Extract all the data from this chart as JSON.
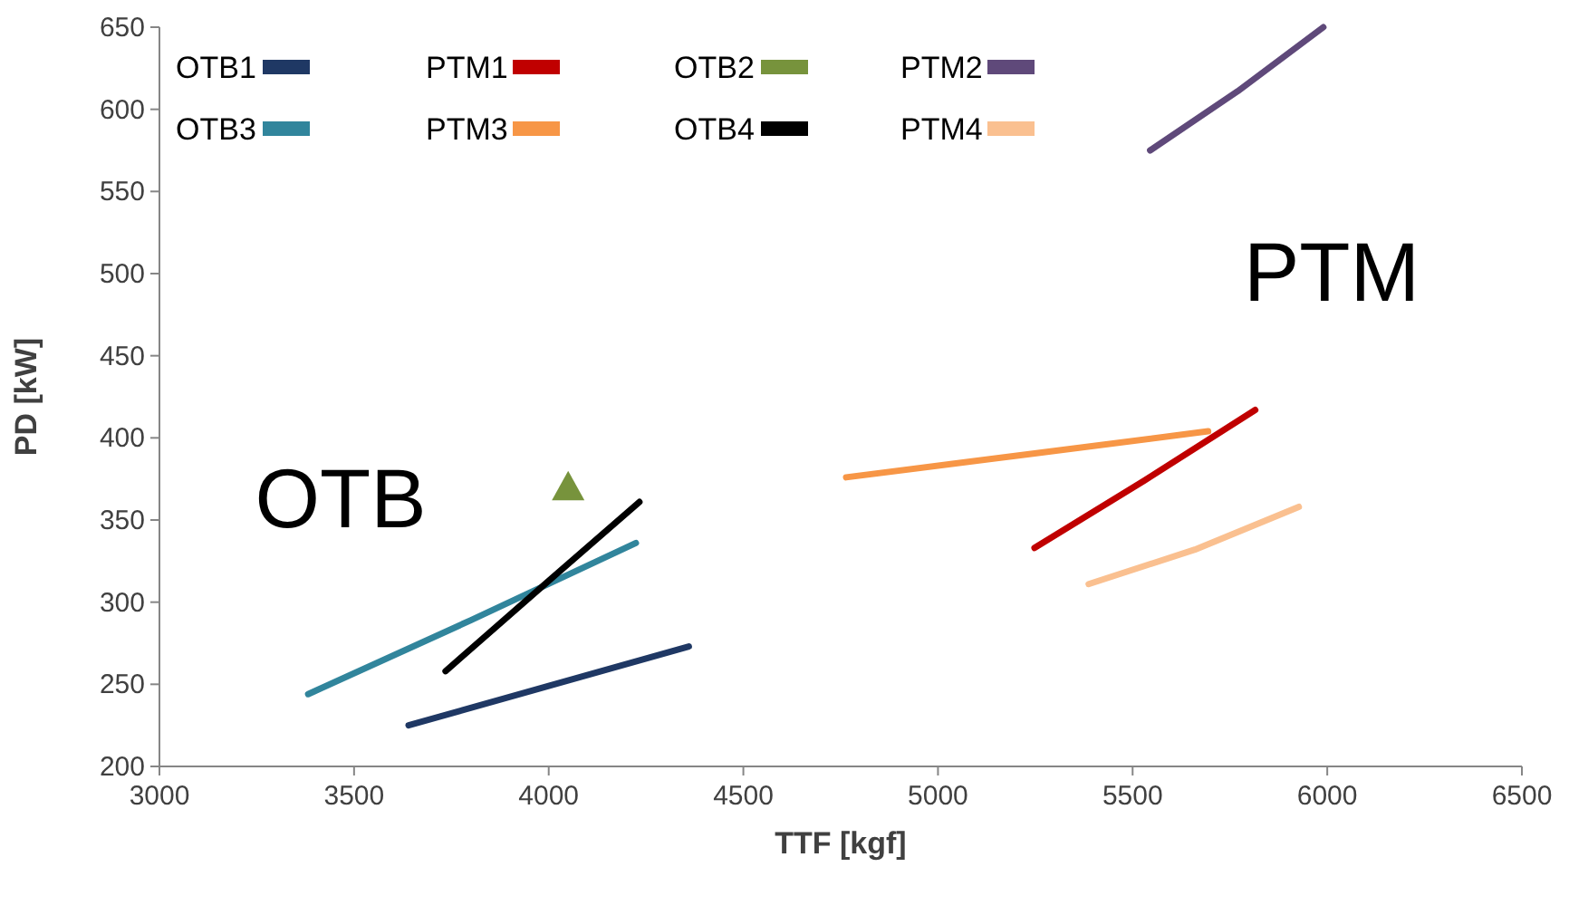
{
  "chart_data": {
    "type": "line",
    "xlabel": "TTF [kgf]",
    "ylabel": "PD [kW]",
    "xlim": [
      3000,
      6500
    ],
    "xticks": [
      3000,
      3500,
      4000,
      4500,
      5000,
      5500,
      6000,
      6500
    ],
    "ylim": [
      200,
      650
    ],
    "yticks": [
      200,
      250,
      300,
      350,
      400,
      450,
      500,
      550,
      600,
      650
    ],
    "grid": false,
    "legend": "top left",
    "marker": "none",
    "line_style": "solid",
    "annotations": [
      "OTB",
      "PTM"
    ],
    "series": [
      {
        "name": "OTB1",
        "color": "#1f3864",
        "x": [
          3640,
          4000,
          4360
        ],
        "values": [
          225,
          249,
          273
        ]
      },
      {
        "name": "PTM1",
        "color": "#c00000",
        "x": [
          5248,
          5530,
          5815
        ],
        "values": [
          333,
          374,
          417
        ]
      },
      {
        "name": "OTB2",
        "type": "scatter",
        "marker": "triangle",
        "color": "#77933c",
        "x": [
          4050
        ],
        "values": [
          370
        ]
      },
      {
        "name": "PTM2",
        "color": "#5f497a",
        "x": [
          5545,
          5770,
          5990
        ],
        "values": [
          575,
          611,
          650
        ]
      },
      {
        "name": "OTB3",
        "color": "#31859c",
        "x": [
          3382,
          3800,
          4224
        ],
        "values": [
          244,
          289,
          336
        ]
      },
      {
        "name": "PTM3",
        "color": "#f79646",
        "x": [
          4764,
          5230,
          5694
        ],
        "values": [
          376,
          390,
          404
        ]
      },
      {
        "name": "OTB4",
        "color": "#000000",
        "x": [
          3735,
          4000,
          4233
        ],
        "values": [
          258,
          313,
          361
        ]
      },
      {
        "name": "PTM4",
        "color": "#fac090",
        "x": [
          5387,
          5660,
          5927
        ],
        "values": [
          311,
          332,
          358
        ]
      }
    ]
  }
}
